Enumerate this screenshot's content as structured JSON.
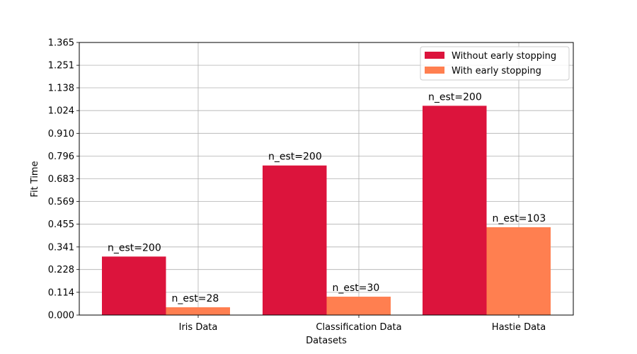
{
  "chart_data": {
    "type": "bar",
    "xlabel": "Datasets",
    "ylabel": "Fit Time",
    "categories": [
      "Iris Data",
      "Classification Data",
      "Hastie Data"
    ],
    "ylim": [
      0,
      1.365
    ],
    "yticks": [
      "0.000",
      "0.114",
      "0.228",
      "0.341",
      "0.455",
      "0.569",
      "0.683",
      "0.796",
      "0.910",
      "1.024",
      "1.138",
      "1.251",
      "1.365"
    ],
    "grid": true,
    "legend_position": "top-right",
    "series": [
      {
        "name": "Without early stopping",
        "color": "#dc143c",
        "values": [
          0.293,
          0.749,
          1.048
        ],
        "labels": [
          "n_est=200",
          "n_est=200",
          "n_est=200"
        ]
      },
      {
        "name": "With early stopping",
        "color": "#ff7f50",
        "values": [
          0.039,
          0.092,
          0.44
        ],
        "labels": [
          "n_est=28",
          "n_est=30",
          "n_est=103"
        ]
      }
    ]
  }
}
